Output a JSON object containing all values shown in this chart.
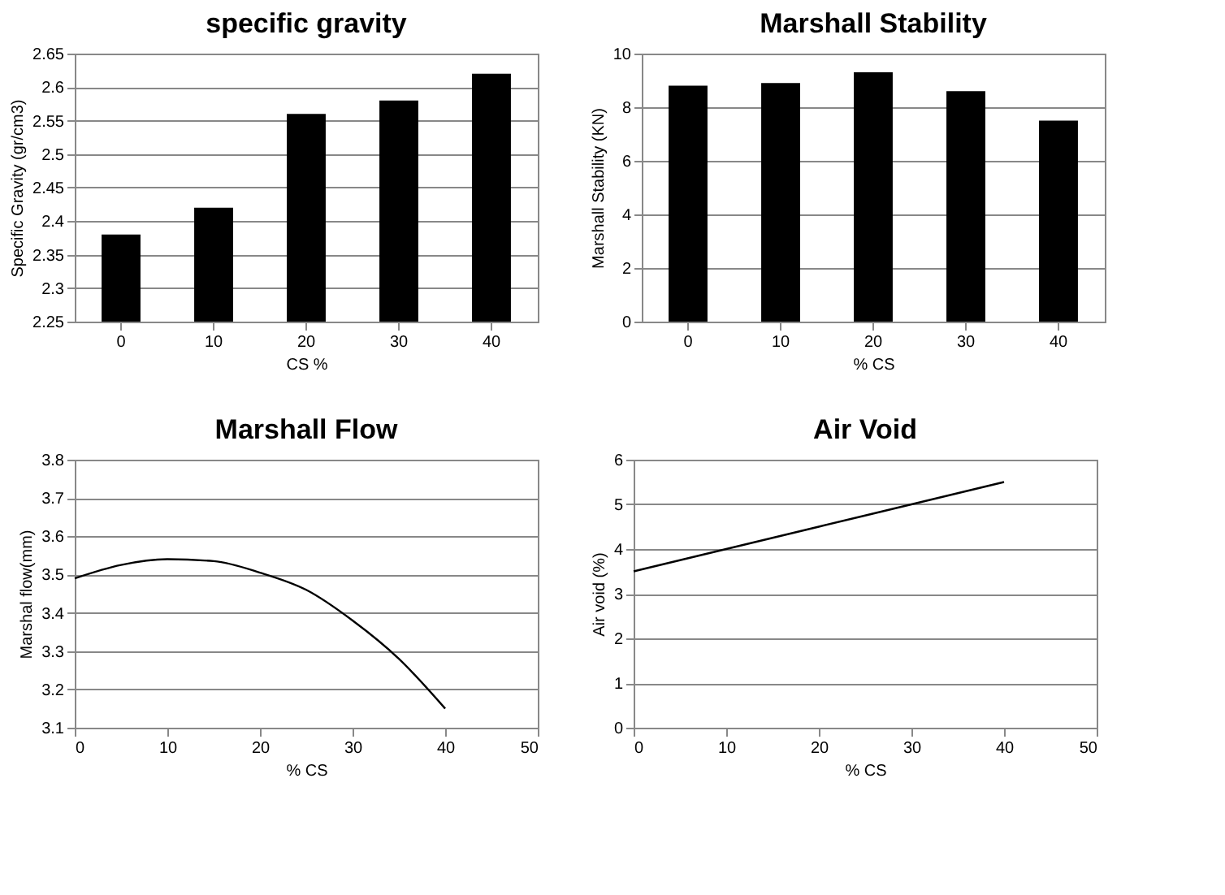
{
  "chart_data": [
    {
      "type": "bar",
      "title": "specific gravity",
      "xlabel": "CS %",
      "ylabel": "Specific Gravity (gr/cm3)",
      "categories": [
        "0",
        "10",
        "20",
        "30",
        "40"
      ],
      "series": [
        {
          "color": "#000000",
          "values": [
            2.38,
            2.42,
            2.56,
            2.58,
            2.62
          ]
        }
      ],
      "ylim": [
        2.25,
        2.65
      ],
      "yticks": [
        2.25,
        2.3,
        2.35,
        2.4,
        2.45,
        2.5,
        2.55,
        2.6,
        2.65
      ],
      "grid": "y",
      "legend": false
    },
    {
      "type": "bar",
      "title": "Marshall Stability",
      "xlabel": "% CS",
      "ylabel": "Marshall Stability (KN)",
      "categories": [
        "0",
        "10",
        "20",
        "30",
        "40"
      ],
      "series": [
        {
          "color": "#000000",
          "values": [
            8.8,
            8.9,
            9.3,
            8.6,
            7.5
          ]
        }
      ],
      "ylim": [
        0,
        10
      ],
      "yticks": [
        0,
        2,
        4,
        6,
        8,
        10
      ],
      "grid": "y",
      "legend": false
    },
    {
      "type": "line",
      "title": "Marshall Flow",
      "xlabel": "% CS",
      "ylabel": "Marshal flow(mm)",
      "x": [
        0,
        5,
        10,
        15,
        20,
        25,
        30,
        35,
        40
      ],
      "series": [
        {
          "color": "#000000",
          "values": [
            3.49,
            3.525,
            3.54,
            3.535,
            3.505,
            3.46,
            3.38,
            3.28,
            3.15
          ]
        }
      ],
      "xlim": [
        0,
        50
      ],
      "xticks": [
        0,
        10,
        20,
        30,
        40,
        50
      ],
      "ylim": [
        3.1,
        3.8
      ],
      "yticks": [
        3.1,
        3.2,
        3.3,
        3.4,
        3.5,
        3.6,
        3.7,
        3.8
      ],
      "grid": "y",
      "marker": "none",
      "line_style": "solid"
    },
    {
      "type": "line",
      "title": "Air Void",
      "xlabel": "% CS",
      "ylabel": "Air void (%)",
      "x": [
        0,
        10,
        20,
        30,
        40
      ],
      "series": [
        {
          "color": "#000000",
          "values": [
            3.5,
            4.0,
            4.5,
            5.0,
            5.5
          ]
        }
      ],
      "xlim": [
        0,
        50
      ],
      "xticks": [
        0,
        10,
        20,
        30,
        40,
        50
      ],
      "ylim": [
        0,
        6
      ],
      "yticks": [
        0,
        1,
        2,
        3,
        4,
        5,
        6
      ],
      "grid": "y",
      "marker": "none",
      "line_style": "solid"
    }
  ]
}
